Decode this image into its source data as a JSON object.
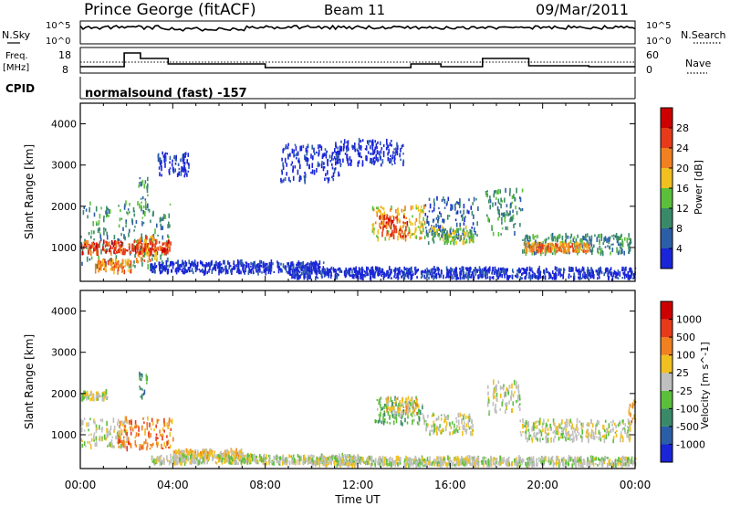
{
  "header": {
    "station": "Prince George (fitACF)",
    "beam": "Beam 11",
    "date": "09/Mar/2011"
  },
  "labels": {
    "nsky": "N.Sky",
    "nsearch": "N.Search",
    "freq": "Freq.",
    "mhz": "[MHz]",
    "nave": "Nave",
    "cpid": "CPID",
    "cpid_value": "normalsound (fast) -157"
  },
  "noise_axis": {
    "left_ticks": [
      "10^5",
      "10^0"
    ],
    "right_ticks": [
      "10^5",
      "10^0"
    ]
  },
  "freq_axis": {
    "left_ticks": [
      "18",
      "8"
    ],
    "right_ticks": [
      "60",
      "0"
    ]
  },
  "chart_data": [
    {
      "type": "heatmap",
      "title": "Power",
      "ylabel": "Slant Range [km]",
      "xlabel": "",
      "colorbar_label": "Power [dB]",
      "colorbar_ticks": [
        "4",
        "8",
        "12",
        "16",
        "20",
        "24",
        "28"
      ],
      "colorbar_colors": [
        "#1a25d8",
        "#2c5ea8",
        "#3a8a6a",
        "#5cbf3c",
        "#f0c020",
        "#f08020",
        "#e63a1a",
        "#cc0000"
      ],
      "ylim": [
        180,
        4500
      ],
      "y_ticks": [
        "1000",
        "2000",
        "3000",
        "4000"
      ],
      "xlim": [
        "00:00",
        "24:00"
      ],
      "regions": [
        {
          "t0": 0.0,
          "t1": 3.9,
          "r0": 500,
          "r1": 2100,
          "level": 2
        },
        {
          "t0": 0.0,
          "t1": 3.9,
          "r0": 850,
          "r1": 1150,
          "level": 6
        },
        {
          "t0": 0.6,
          "t1": 2.2,
          "r0": 400,
          "r1": 700,
          "level": 5
        },
        {
          "t0": 2.4,
          "t1": 3.3,
          "r0": 650,
          "r1": 1250,
          "level": 5
        },
        {
          "t0": 2.5,
          "t1": 2.9,
          "r0": 1900,
          "r1": 2700,
          "level": 2
        },
        {
          "t0": 3.3,
          "t1": 4.7,
          "r0": 2700,
          "r1": 3300,
          "level": 0
        },
        {
          "t0": 3.0,
          "t1": 10.5,
          "r0": 380,
          "r1": 650,
          "level": 0
        },
        {
          "t0": 8.6,
          "t1": 11.3,
          "r0": 2600,
          "r1": 3500,
          "level": 0
        },
        {
          "t0": 11.0,
          "t1": 14.0,
          "r0": 3000,
          "r1": 3600,
          "level": 0
        },
        {
          "t0": 12.6,
          "t1": 14.9,
          "r0": 1200,
          "r1": 2000,
          "level": 4
        },
        {
          "t0": 12.9,
          "t1": 14.2,
          "r0": 1250,
          "r1": 1750,
          "level": 6
        },
        {
          "t0": 14.9,
          "t1": 17.2,
          "r0": 1200,
          "r1": 2200,
          "level": 1
        },
        {
          "t0": 15.0,
          "t1": 17.0,
          "r0": 1100,
          "r1": 1500,
          "level": 3
        },
        {
          "t0": 17.5,
          "t1": 19.1,
          "r0": 1300,
          "r1": 2400,
          "level": 2
        },
        {
          "t0": 19.1,
          "t1": 23.8,
          "r0": 850,
          "r1": 1300,
          "level": 2
        },
        {
          "t0": 19.2,
          "t1": 22.0,
          "r0": 900,
          "r1": 1100,
          "level": 5
        },
        {
          "t0": 9.0,
          "t1": 24.0,
          "r0": 250,
          "r1": 500,
          "level": 0
        }
      ]
    },
    {
      "type": "heatmap",
      "title": "Velocity",
      "ylabel": "Slant Range [km]",
      "xlabel": "Time UT",
      "colorbar_label": "Velocity [m s^-1]",
      "colorbar_ticks": [
        "1000",
        "500",
        "100",
        "25",
        "-25",
        "-100",
        "-500",
        "-1000"
      ],
      "colorbar_colors": [
        "#1a25d8",
        "#2c5ea8",
        "#3a8a6a",
        "#5cbf3c",
        "#bfbfbf",
        "#f0c020",
        "#f08020",
        "#e63a1a",
        "#cc0000"
      ],
      "ylim": [
        180,
        4500
      ],
      "y_ticks": [
        "1000",
        "2000",
        "3000",
        "4000"
      ],
      "x_ticks": [
        "00:00",
        "04:00",
        "08:00",
        "12:00",
        "16:00",
        "20:00",
        "00:00"
      ],
      "xlim": [
        "00:00",
        "24:00"
      ],
      "regions": [
        {
          "t0": 0.0,
          "t1": 2.0,
          "r0": 700,
          "r1": 1400,
          "level": 4
        },
        {
          "t0": 0.0,
          "t1": 1.2,
          "r0": 1850,
          "r1": 2050,
          "level": 4
        },
        {
          "t0": 1.6,
          "t1": 4.0,
          "r0": 650,
          "r1": 1400,
          "level": 6
        },
        {
          "t0": 2.5,
          "t1": 2.9,
          "r0": 1900,
          "r1": 2500,
          "level": 2
        },
        {
          "t0": 4.0,
          "t1": 7.0,
          "r0": 450,
          "r1": 620,
          "level": 5
        },
        {
          "t0": 3.0,
          "t1": 12.0,
          "r0": 300,
          "r1": 500,
          "level": 4
        },
        {
          "t0": 12.7,
          "t1": 14.8,
          "r0": 1250,
          "r1": 1900,
          "level": 3
        },
        {
          "t0": 13.2,
          "t1": 14.6,
          "r0": 1500,
          "r1": 1900,
          "level": 5
        },
        {
          "t0": 14.8,
          "t1": 17.0,
          "r0": 1000,
          "r1": 1500,
          "level": 4
        },
        {
          "t0": 17.6,
          "t1": 19.0,
          "r0": 1500,
          "r1": 2300,
          "level": 4
        },
        {
          "t0": 19.0,
          "t1": 23.8,
          "r0": 850,
          "r1": 1350,
          "level": 4
        },
        {
          "t0": 23.7,
          "t1": 24.0,
          "r0": 1200,
          "r1": 1800,
          "level": 6
        },
        {
          "t0": 10.0,
          "t1": 24.0,
          "r0": 250,
          "r1": 450,
          "level": 4
        }
      ]
    }
  ]
}
